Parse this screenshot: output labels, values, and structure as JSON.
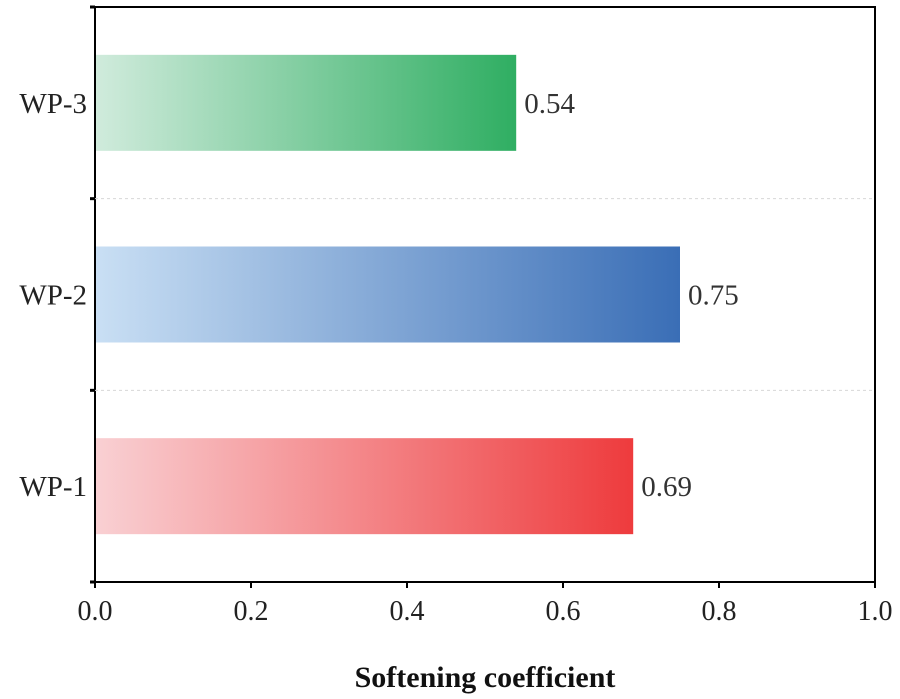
{
  "chart_data": {
    "type": "bar",
    "orientation": "horizontal",
    "categories": [
      "WP-1",
      "WP-2",
      "WP-3"
    ],
    "values": [
      0.69,
      0.75,
      0.54
    ],
    "value_labels": [
      "0.69",
      "0.75",
      "0.54"
    ],
    "xlabel": "Softening coefficient",
    "ylabel": "",
    "xlim": [
      0.0,
      1.0
    ],
    "xticks": [
      "0.0",
      "0.2",
      "0.4",
      "0.6",
      "0.8",
      "1.0"
    ],
    "grid": "dashed horizontal separators between categories",
    "bar_colors": [
      {
        "light": "#f9d0d3",
        "dark": "#ee3b3d"
      },
      {
        "light": "#c9dff4",
        "dark": "#3a6eb6"
      },
      {
        "light": "#d0ebdc",
        "dark": "#2fae62"
      }
    ]
  }
}
